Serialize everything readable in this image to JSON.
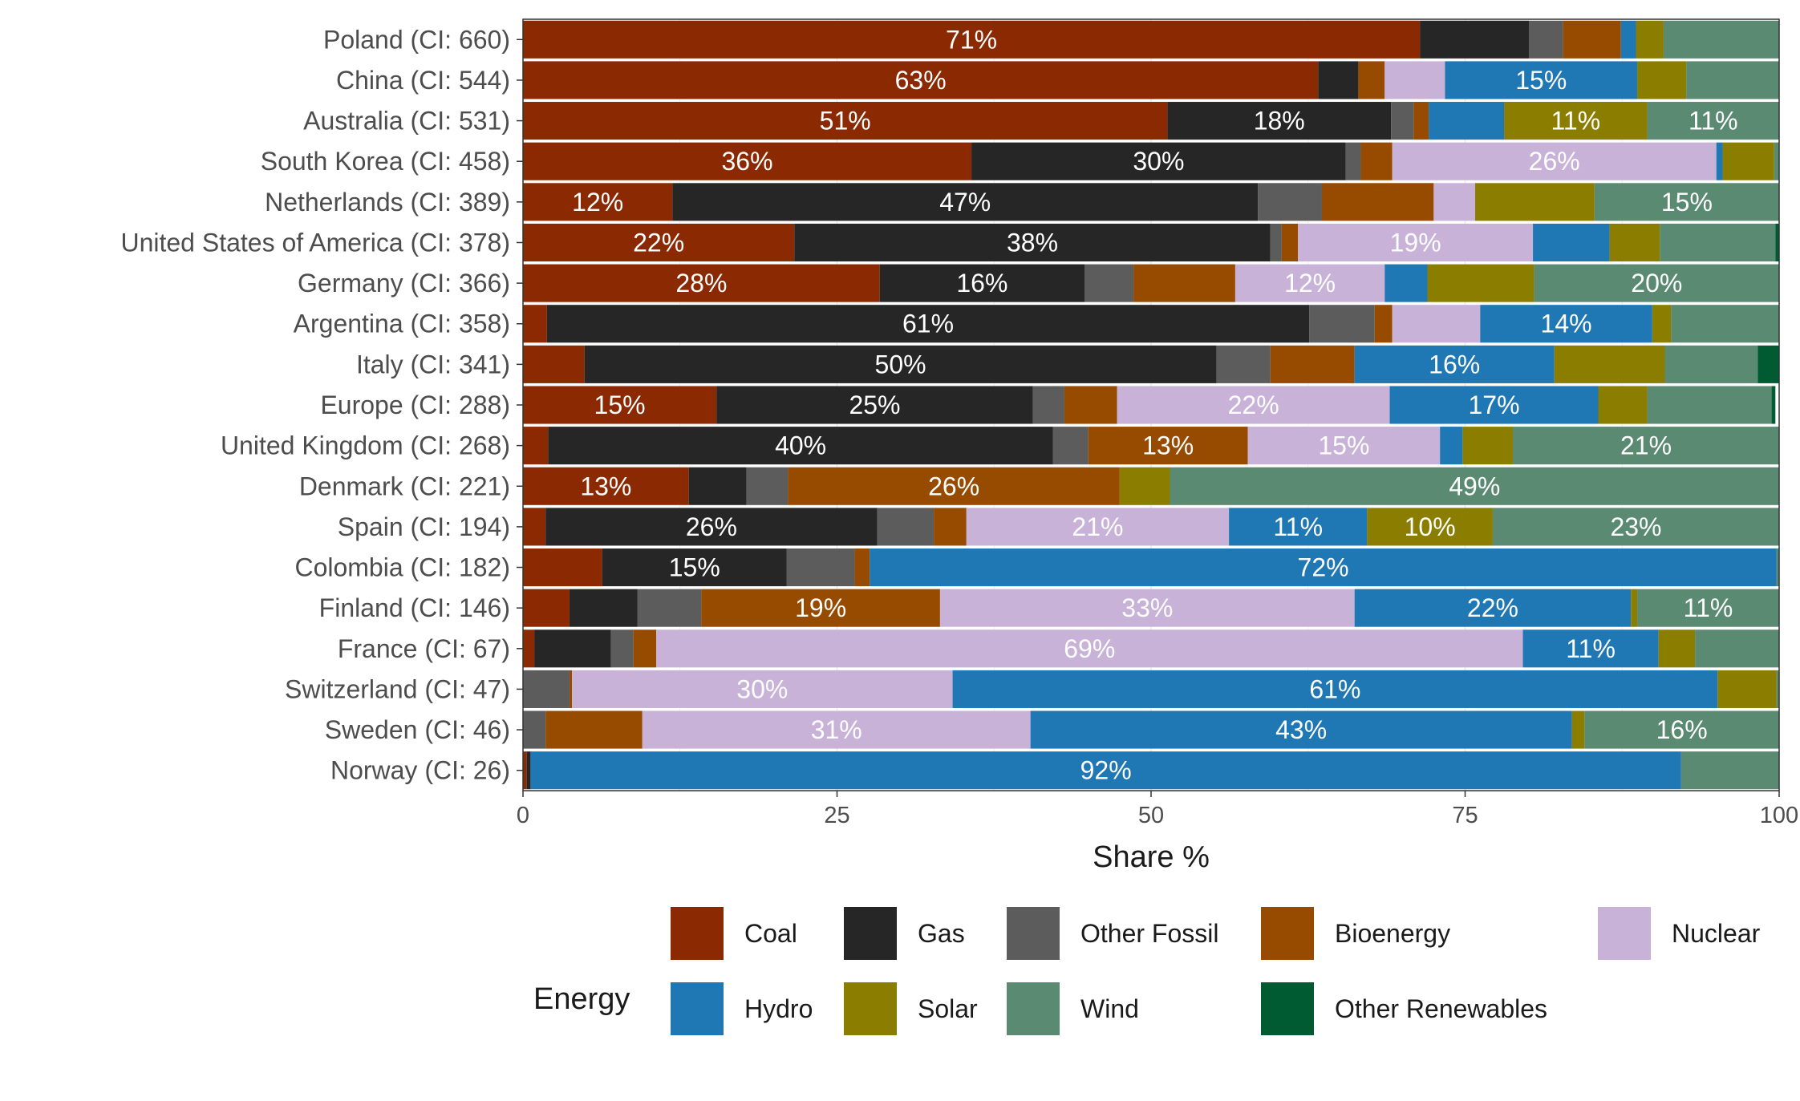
{
  "chart_data": {
    "type": "bar",
    "orientation": "horizontal",
    "stacked": true,
    "xlabel": "Share %",
    "ylabel": "",
    "xlim": [
      0,
      100
    ],
    "xticks": [
      "0",
      "25",
      "50",
      "75",
      "100"
    ],
    "legend_title": "Energy",
    "legend_position": "bottom",
    "colors": {
      "Coal": "#8B2A02",
      "Gas": "#262626",
      "Other Fossil": "#5C5C5C",
      "Bioenergy": "#964B00",
      "Nuclear": "#C8B2D8",
      "Hydro": "#1F77B4",
      "Solar": "#8A7D00",
      "Wind": "#5A8A72",
      "Other Renewables": "#005A32"
    },
    "series_order": [
      "Coal",
      "Gas",
      "Other Fossil",
      "Bioenergy",
      "Nuclear",
      "Hydro",
      "Solar",
      "Wind",
      "Other Renewables"
    ],
    "categories": [
      "Poland (CI: 660)",
      "China (CI: 544)",
      "Australia (CI: 531)",
      "South Korea (CI: 458)",
      "Netherlands (CI: 389)",
      "United States of America (CI: 378)",
      "Germany (CI: 366)",
      "Argentina (CI: 358)",
      "Italy (CI: 341)",
      "Europe (CI: 288)",
      "United Kingdom (CI: 268)",
      "Denmark (CI: 221)",
      "Spain (CI: 194)",
      "Colombia (CI: 182)",
      "Finland (CI: 146)",
      "France (CI: 67)",
      "Switzerland (CI: 47)",
      "Sweden (CI: 46)",
      "Norway (CI: 26)"
    ],
    "series": [
      {
        "name": "Coal",
        "values": [
          71.4,
          63.3,
          51.3,
          35.7,
          11.9,
          21.6,
          28.4,
          1.9,
          4.9,
          15.4,
          2.0,
          13.2,
          1.8,
          6.3,
          3.7,
          0.9,
          0.0,
          0.0,
          0.3
        ]
      },
      {
        "name": "Gas",
        "values": [
          8.7,
          3.2,
          17.8,
          29.8,
          46.6,
          37.9,
          16.3,
          60.7,
          50.3,
          25.2,
          40.2,
          4.6,
          26.4,
          14.7,
          5.4,
          6.1,
          0.0,
          0.0,
          0.3
        ]
      },
      {
        "name": "Other Fossil",
        "values": [
          2.7,
          0.0,
          1.8,
          1.2,
          5.1,
          0.9,
          3.9,
          5.2,
          4.3,
          2.5,
          2.8,
          3.3,
          4.5,
          5.4,
          5.1,
          1.8,
          3.7,
          1.8,
          0.0
        ]
      },
      {
        "name": "Bioenergy",
        "values": [
          4.6,
          2.1,
          1.2,
          2.5,
          8.9,
          1.3,
          8.1,
          1.4,
          6.7,
          4.2,
          12.7,
          26.4,
          2.6,
          1.2,
          19.0,
          1.8,
          0.2,
          7.7,
          0.0
        ]
      },
      {
        "name": "Nuclear",
        "values": [
          0.0,
          4.8,
          0.0,
          25.8,
          3.3,
          18.7,
          11.9,
          7.0,
          0.0,
          21.7,
          15.3,
          0.0,
          20.9,
          0.0,
          33.0,
          69.0,
          30.3,
          30.9,
          0.0
        ]
      },
      {
        "name": "Hydro",
        "values": [
          1.2,
          15.3,
          6.0,
          0.5,
          0.0,
          6.1,
          3.4,
          13.7,
          15.9,
          16.6,
          1.8,
          0.0,
          11.0,
          72.2,
          22.0,
          10.8,
          60.9,
          43.1,
          91.6
        ]
      },
      {
        "name": "Solar",
        "values": [
          2.2,
          3.9,
          11.4,
          4.1,
          9.5,
          4.0,
          8.5,
          1.5,
          8.8,
          3.9,
          4.0,
          4.0,
          10.0,
          0.0,
          0.5,
          2.9,
          4.7,
          1.0,
          0.0
        ]
      },
      {
        "name": "Wind",
        "values": [
          9.2,
          7.4,
          10.5,
          0.4,
          14.7,
          9.2,
          19.5,
          8.6,
          7.4,
          9.9,
          21.2,
          48.5,
          22.8,
          0.2,
          11.3,
          6.7,
          0.2,
          15.5,
          7.8
        ]
      },
      {
        "name": "Other Renewables",
        "values": [
          0.0,
          0.0,
          0.0,
          0.0,
          0.0,
          0.3,
          0.0,
          0.0,
          1.7,
          0.3,
          0.0,
          0.0,
          0.0,
          0.0,
          0.0,
          0.0,
          0.0,
          0.0,
          0.0
        ]
      }
    ]
  }
}
